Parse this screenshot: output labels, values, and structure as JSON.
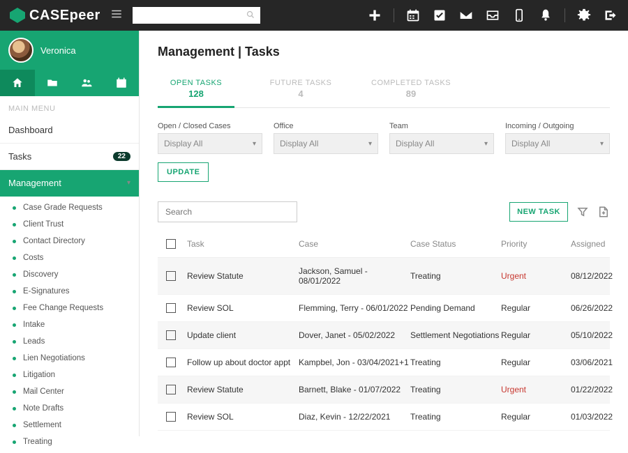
{
  "brand": "CASEpeer",
  "user": {
    "name": "Veronica"
  },
  "search_placeholder": "",
  "main_menu_label": "MAIN MENU",
  "menu": {
    "dashboard": "Dashboard",
    "tasks": "Tasks",
    "tasks_badge": "22",
    "management": "Management"
  },
  "submenu": [
    "Case Grade Requests",
    "Client Trust",
    "Contact Directory",
    "Costs",
    "Discovery",
    "E-Signatures",
    "Fee Change Requests",
    "Intake",
    "Leads",
    "Lien Negotiations",
    "Litigation",
    "Mail Center",
    "Note Drafts",
    "Settlement",
    "Treating"
  ],
  "page_title": "Management | Tasks",
  "tabs": [
    {
      "label": "OPEN TASKS",
      "count": "128",
      "active": true
    },
    {
      "label": "FUTURE TASKS",
      "count": "4"
    },
    {
      "label": "COMPLETED TASKS",
      "count": "89"
    }
  ],
  "filters": [
    {
      "label": "Open / Closed Cases",
      "value": "Display All"
    },
    {
      "label": "Office",
      "value": "Display All"
    },
    {
      "label": "Team",
      "value": "Display All"
    },
    {
      "label": "Incoming / Outgoing",
      "value": "Display All"
    }
  ],
  "update_label": "UPDATE",
  "list_search_placeholder": "Search",
  "new_task_label": "NEW TASK",
  "columns": {
    "task": "Task",
    "case": "Case",
    "status": "Case Status",
    "priority": "Priority",
    "assigned": "Assigned"
  },
  "rows": [
    {
      "task": "Review Statute",
      "case": "Jackson, Samuel - 08/01/2022",
      "status": "Treating",
      "priority": "Urgent",
      "priority_class": "prio-urgent",
      "assigned": "08/12/2022"
    },
    {
      "task": "Review SOL",
      "case": "Flemming, Terry - 06/01/2022",
      "status": "Pending Demand",
      "priority": "Regular",
      "priority_class": "",
      "assigned": "06/26/2022"
    },
    {
      "task": "Update client",
      "case": "Dover, Janet - 05/02/2022",
      "status": "Settlement Negotiations",
      "priority": "Regular",
      "priority_class": "",
      "assigned": "05/10/2022"
    },
    {
      "task": "Follow up about doctor appt",
      "case": "Kampbel, Jon - 03/04/2021+1",
      "status": "Treating",
      "priority": "Regular",
      "priority_class": "",
      "assigned": "03/06/2021"
    },
    {
      "task": "Review Statute",
      "case": "Barnett, Blake - 01/07/2022",
      "status": "Treating",
      "priority": "Urgent",
      "priority_class": "prio-urgent",
      "assigned": "01/22/2022"
    },
    {
      "task": "Review SOL",
      "case": "Diaz, Kevin - 12/22/2021",
      "status": "Treating",
      "priority": "Regular",
      "priority_class": "",
      "assigned": "01/03/2022"
    }
  ]
}
